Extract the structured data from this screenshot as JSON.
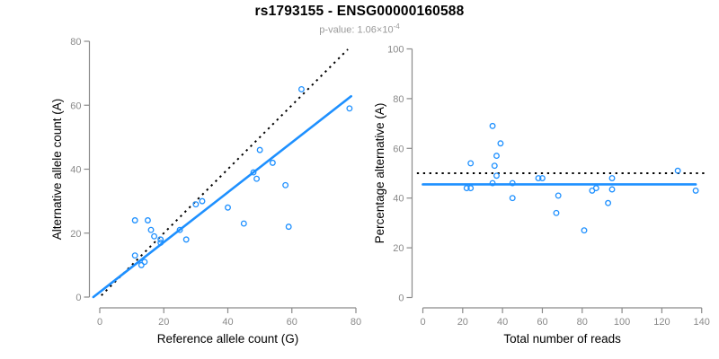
{
  "header": {
    "title": "rs1793155 - ENSG00000160588",
    "subtitle_base": "p-value: 1.06×10",
    "subtitle_exponent": "-4"
  },
  "colors": {
    "accent_blue": "#1E90FF",
    "identity_line_black": "#000000",
    "axis_gray": "#8a8a8a",
    "tick_label_gray": "#8a8a8a",
    "axis_title_black": "#000000",
    "subtitle_gray": "#9a9a9a",
    "background": "#ffffff"
  },
  "chart_data": [
    {
      "type": "scatter",
      "name": "allele-counts-scatter",
      "xlabel": "Reference allele count (G)",
      "ylabel": "Alternative allele count (A)",
      "xlim": [
        0,
        80
      ],
      "ylim": [
        0,
        80
      ],
      "xticks": [
        0,
        20,
        40,
        60,
        80
      ],
      "yticks": [
        0,
        20,
        40,
        60,
        80
      ],
      "grid": false,
      "legend": null,
      "marker": "open-circle",
      "points": [
        [
          11,
          24
        ],
        [
          15,
          24
        ],
        [
          16,
          21
        ],
        [
          17,
          19
        ],
        [
          19,
          18
        ],
        [
          19,
          17
        ],
        [
          11,
          13
        ],
        [
          13,
          10
        ],
        [
          14,
          11
        ],
        [
          25,
          21
        ],
        [
          27,
          18
        ],
        [
          30,
          29
        ],
        [
          32,
          30
        ],
        [
          40,
          28
        ],
        [
          45,
          23
        ],
        [
          48,
          39
        ],
        [
          49,
          37
        ],
        [
          50,
          46
        ],
        [
          54,
          42
        ],
        [
          58,
          35
        ],
        [
          59,
          22
        ],
        [
          63,
          65
        ],
        [
          78,
          59
        ]
      ],
      "lines": [
        {
          "name": "identity-line",
          "style": "dotted",
          "color": "#000000",
          "x1": 0.5,
          "y1": 0.5,
          "x2": 77.5,
          "y2": 77.5
        },
        {
          "name": "regression-line",
          "style": "solid",
          "color": "#1E90FF",
          "x1": -2,
          "y1": 0,
          "x2": 78.5,
          "y2": 62.8
        }
      ]
    },
    {
      "type": "scatter",
      "name": "percentage-vs-coverage-scatter",
      "xlabel": "Total number of reads",
      "ylabel": "Percentage alternative (A)",
      "xlim": [
        0,
        140
      ],
      "ylim": [
        0,
        100
      ],
      "xticks": [
        0,
        20,
        40,
        60,
        80,
        100,
        120,
        140
      ],
      "yticks": [
        0,
        20,
        40,
        60,
        80,
        100
      ],
      "grid": false,
      "legend": null,
      "marker": "open-circle",
      "points": [
        [
          35,
          69
        ],
        [
          39,
          62
        ],
        [
          37,
          57
        ],
        [
          36,
          53
        ],
        [
          37,
          49
        ],
        [
          35,
          46
        ],
        [
          24,
          54
        ],
        [
          22,
          44
        ],
        [
          24,
          44
        ],
        [
          45,
          46
        ],
        [
          45,
          40
        ],
        [
          58,
          48
        ],
        [
          60,
          48
        ],
        [
          68,
          41
        ],
        [
          67,
          34
        ],
        [
          87,
          44
        ],
        [
          85,
          43
        ],
        [
          95,
          48
        ],
        [
          95,
          43.5
        ],
        [
          93,
          38
        ],
        [
          81,
          27
        ],
        [
          128,
          51
        ],
        [
          137,
          43
        ]
      ],
      "lines": [
        {
          "name": "null-expectation-line",
          "style": "dotted",
          "color": "#000000",
          "x1": -3,
          "y1": 50,
          "x2": 142,
          "y2": 50
        },
        {
          "name": "mean-percentage-line",
          "style": "solid",
          "color": "#1E90FF",
          "x1": 0,
          "y1": 45.5,
          "x2": 137,
          "y2": 45.5
        }
      ]
    }
  ]
}
